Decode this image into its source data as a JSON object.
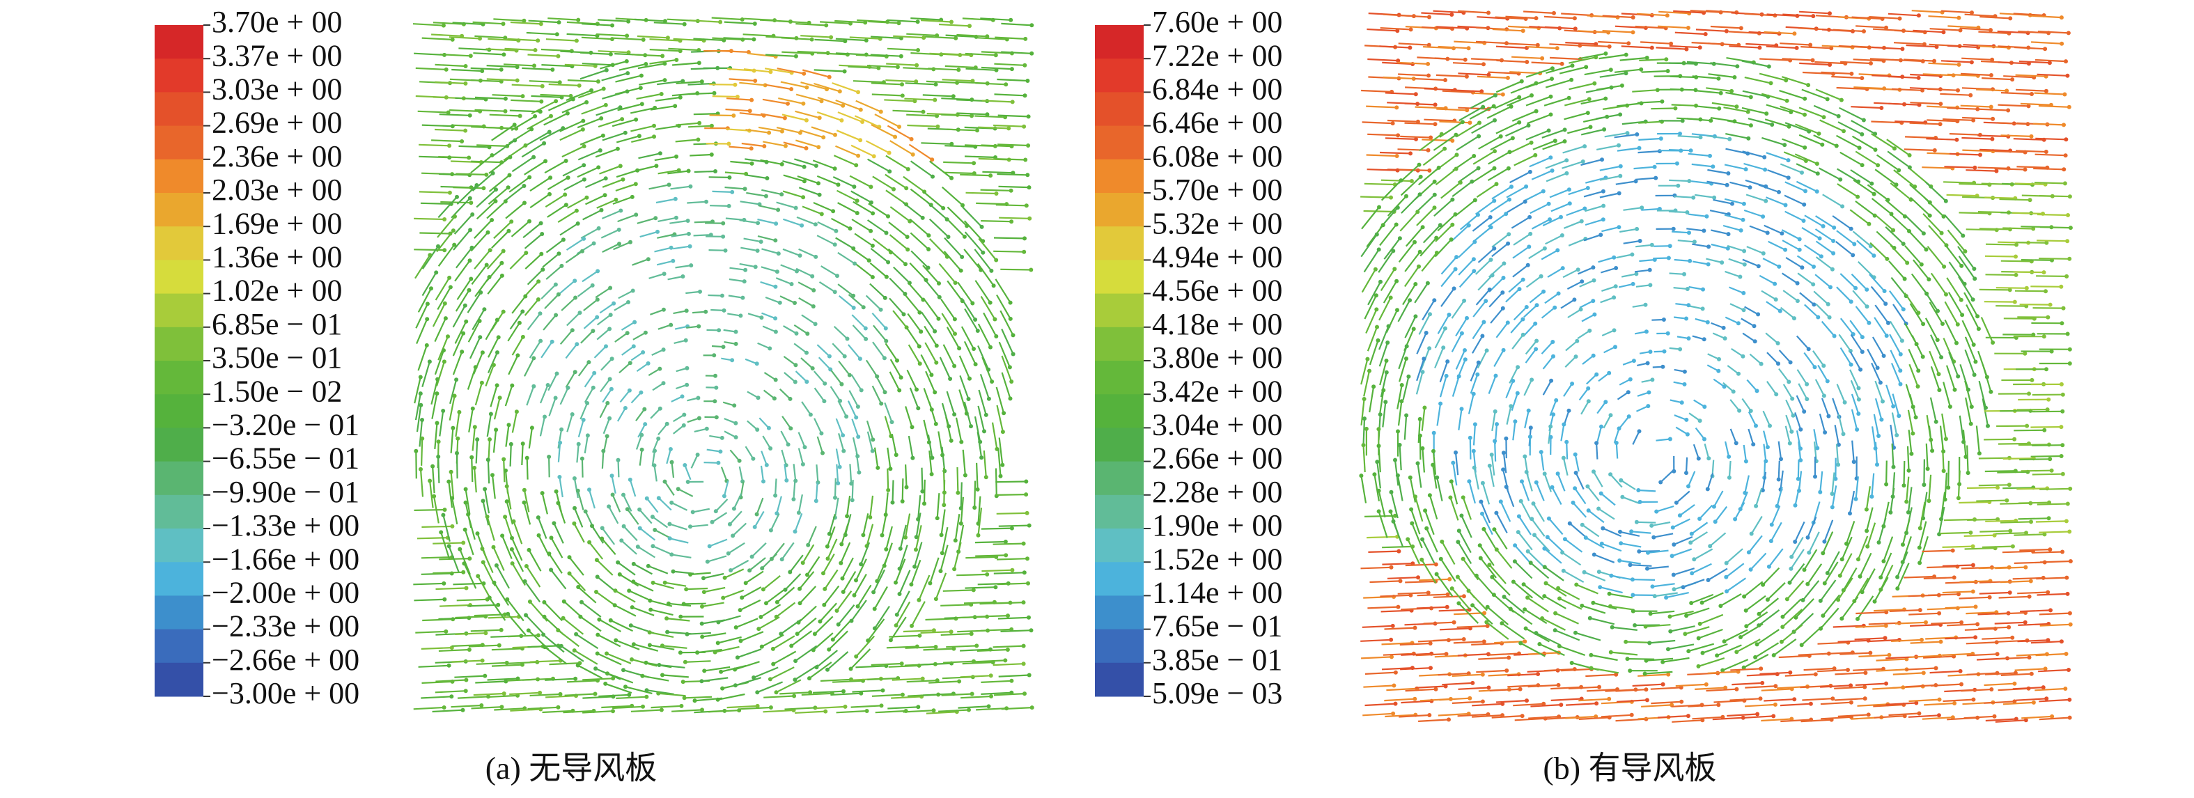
{
  "colors": [
    "#d62728",
    "#e23a2a",
    "#e4512a",
    "#e8662b",
    "#ef8a2b",
    "#eaa72e",
    "#e2c93a",
    "#d6dc3c",
    "#a8cc3a",
    "#7fc03a",
    "#64b83a",
    "#55b23c",
    "#4fae4a",
    "#5ab571",
    "#61bc98",
    "#5fbfc3",
    "#4cb3dc",
    "#3d8fcc",
    "#3a6cbc",
    "#3450a8"
  ],
  "panels": [
    {
      "legend": {
        "labels": [
          "3.70e + 00",
          "3.37e + 00",
          "3.03e + 00",
          "2.69e + 00",
          "2.36e + 00",
          "2.03e + 00",
          "1.69e + 00",
          "1.36e + 00",
          "1.02e + 00",
          "6.85e − 01",
          "3.50e − 01",
          "1.50e − 02",
          "−3.20e − 01",
          "−6.55e − 01",
          "−9.90e − 01",
          "−1.33e + 00",
          "−1.66e + 00",
          "−2.00e + 00",
          "−2.33e + 00",
          "−2.66e + 00",
          "−3.00e + 00"
        ]
      },
      "caption": "(a) 无导风板"
    },
    {
      "legend": {
        "labels": [
          "7.60e + 00",
          "7.22e + 00",
          "6.84e + 00",
          "6.46e + 00",
          "6.08e + 00",
          "5.70e + 00",
          "5.32e + 00",
          "4.94e + 00",
          "4.56e + 00",
          "4.18e + 00",
          "3.80e + 00",
          "3.42e + 00",
          "3.04e + 00",
          "2.66e + 00",
          "2.28e + 00",
          "1.90e + 00",
          "1.52e + 00",
          "1.14e + 00",
          "7.65e − 01",
          "3.85e − 01",
          "5.09e − 03"
        ]
      },
      "caption": "(b) 有导风板"
    }
  ]
}
